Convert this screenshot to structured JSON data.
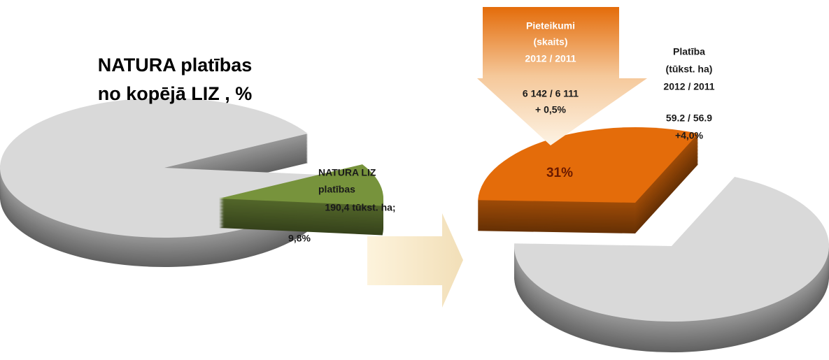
{
  "chart_data": [
    {
      "type": "pie",
      "title": [
        "NATURA platības",
        "no kopējā LIZ , %"
      ],
      "values": [
        90.2,
        9.8
      ],
      "value_labels": [
        null,
        "9,8%"
      ],
      "colors": [
        "#d9d9d9",
        "#77933c"
      ],
      "annotations": [
        [
          "NATURA  LIZ",
          "platības",
          "190,4 tūkst. ha;"
        ]
      ]
    },
    {
      "type": "pie",
      "values": [
        31,
        69
      ],
      "value_labels": [
        "31%",
        null
      ],
      "colors": [
        "#e46c0a",
        "#d9d9d9"
      ],
      "annotations": [
        [
          "Pieteikumi",
          "(skaits)",
          "2012 / 2011",
          "6 142 / 6 111",
          "+ 0,5%"
        ],
        [
          "Platība",
          "(tūkst. ha)",
          "2012 / 2011",
          "59.2 / 56.9",
          "+4,0%"
        ]
      ]
    }
  ]
}
